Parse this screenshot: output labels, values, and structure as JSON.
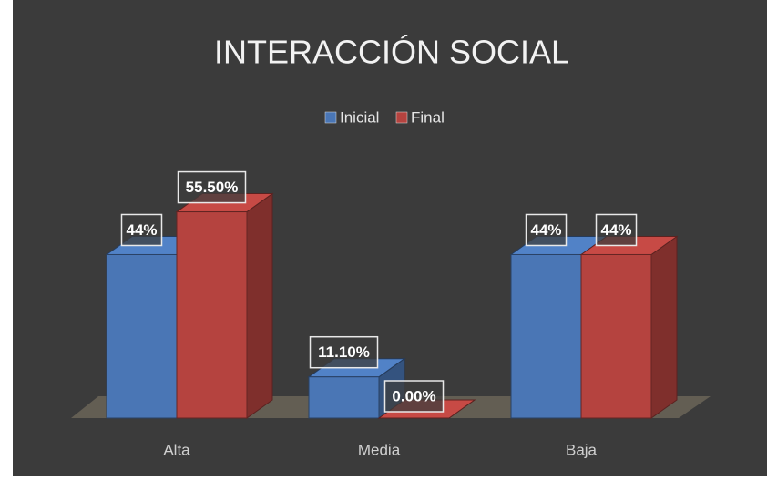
{
  "chart_data": {
    "type": "bar3d",
    "title": "INTERACCIÓN SOCIAL",
    "categories": [
      "Alta",
      "Media",
      "Baja"
    ],
    "series": [
      {
        "name": "Inicial",
        "color": "#4a76b5",
        "values": [
          44,
          11.1,
          44
        ],
        "value_labels": [
          "44%",
          "11.10%",
          "44%"
        ]
      },
      {
        "name": "Final",
        "color": "#b5433f",
        "values": [
          55.5,
          0,
          44
        ],
        "value_labels": [
          "55.50%",
          "0.00%",
          "44%"
        ]
      }
    ],
    "legend": "top"
  }
}
